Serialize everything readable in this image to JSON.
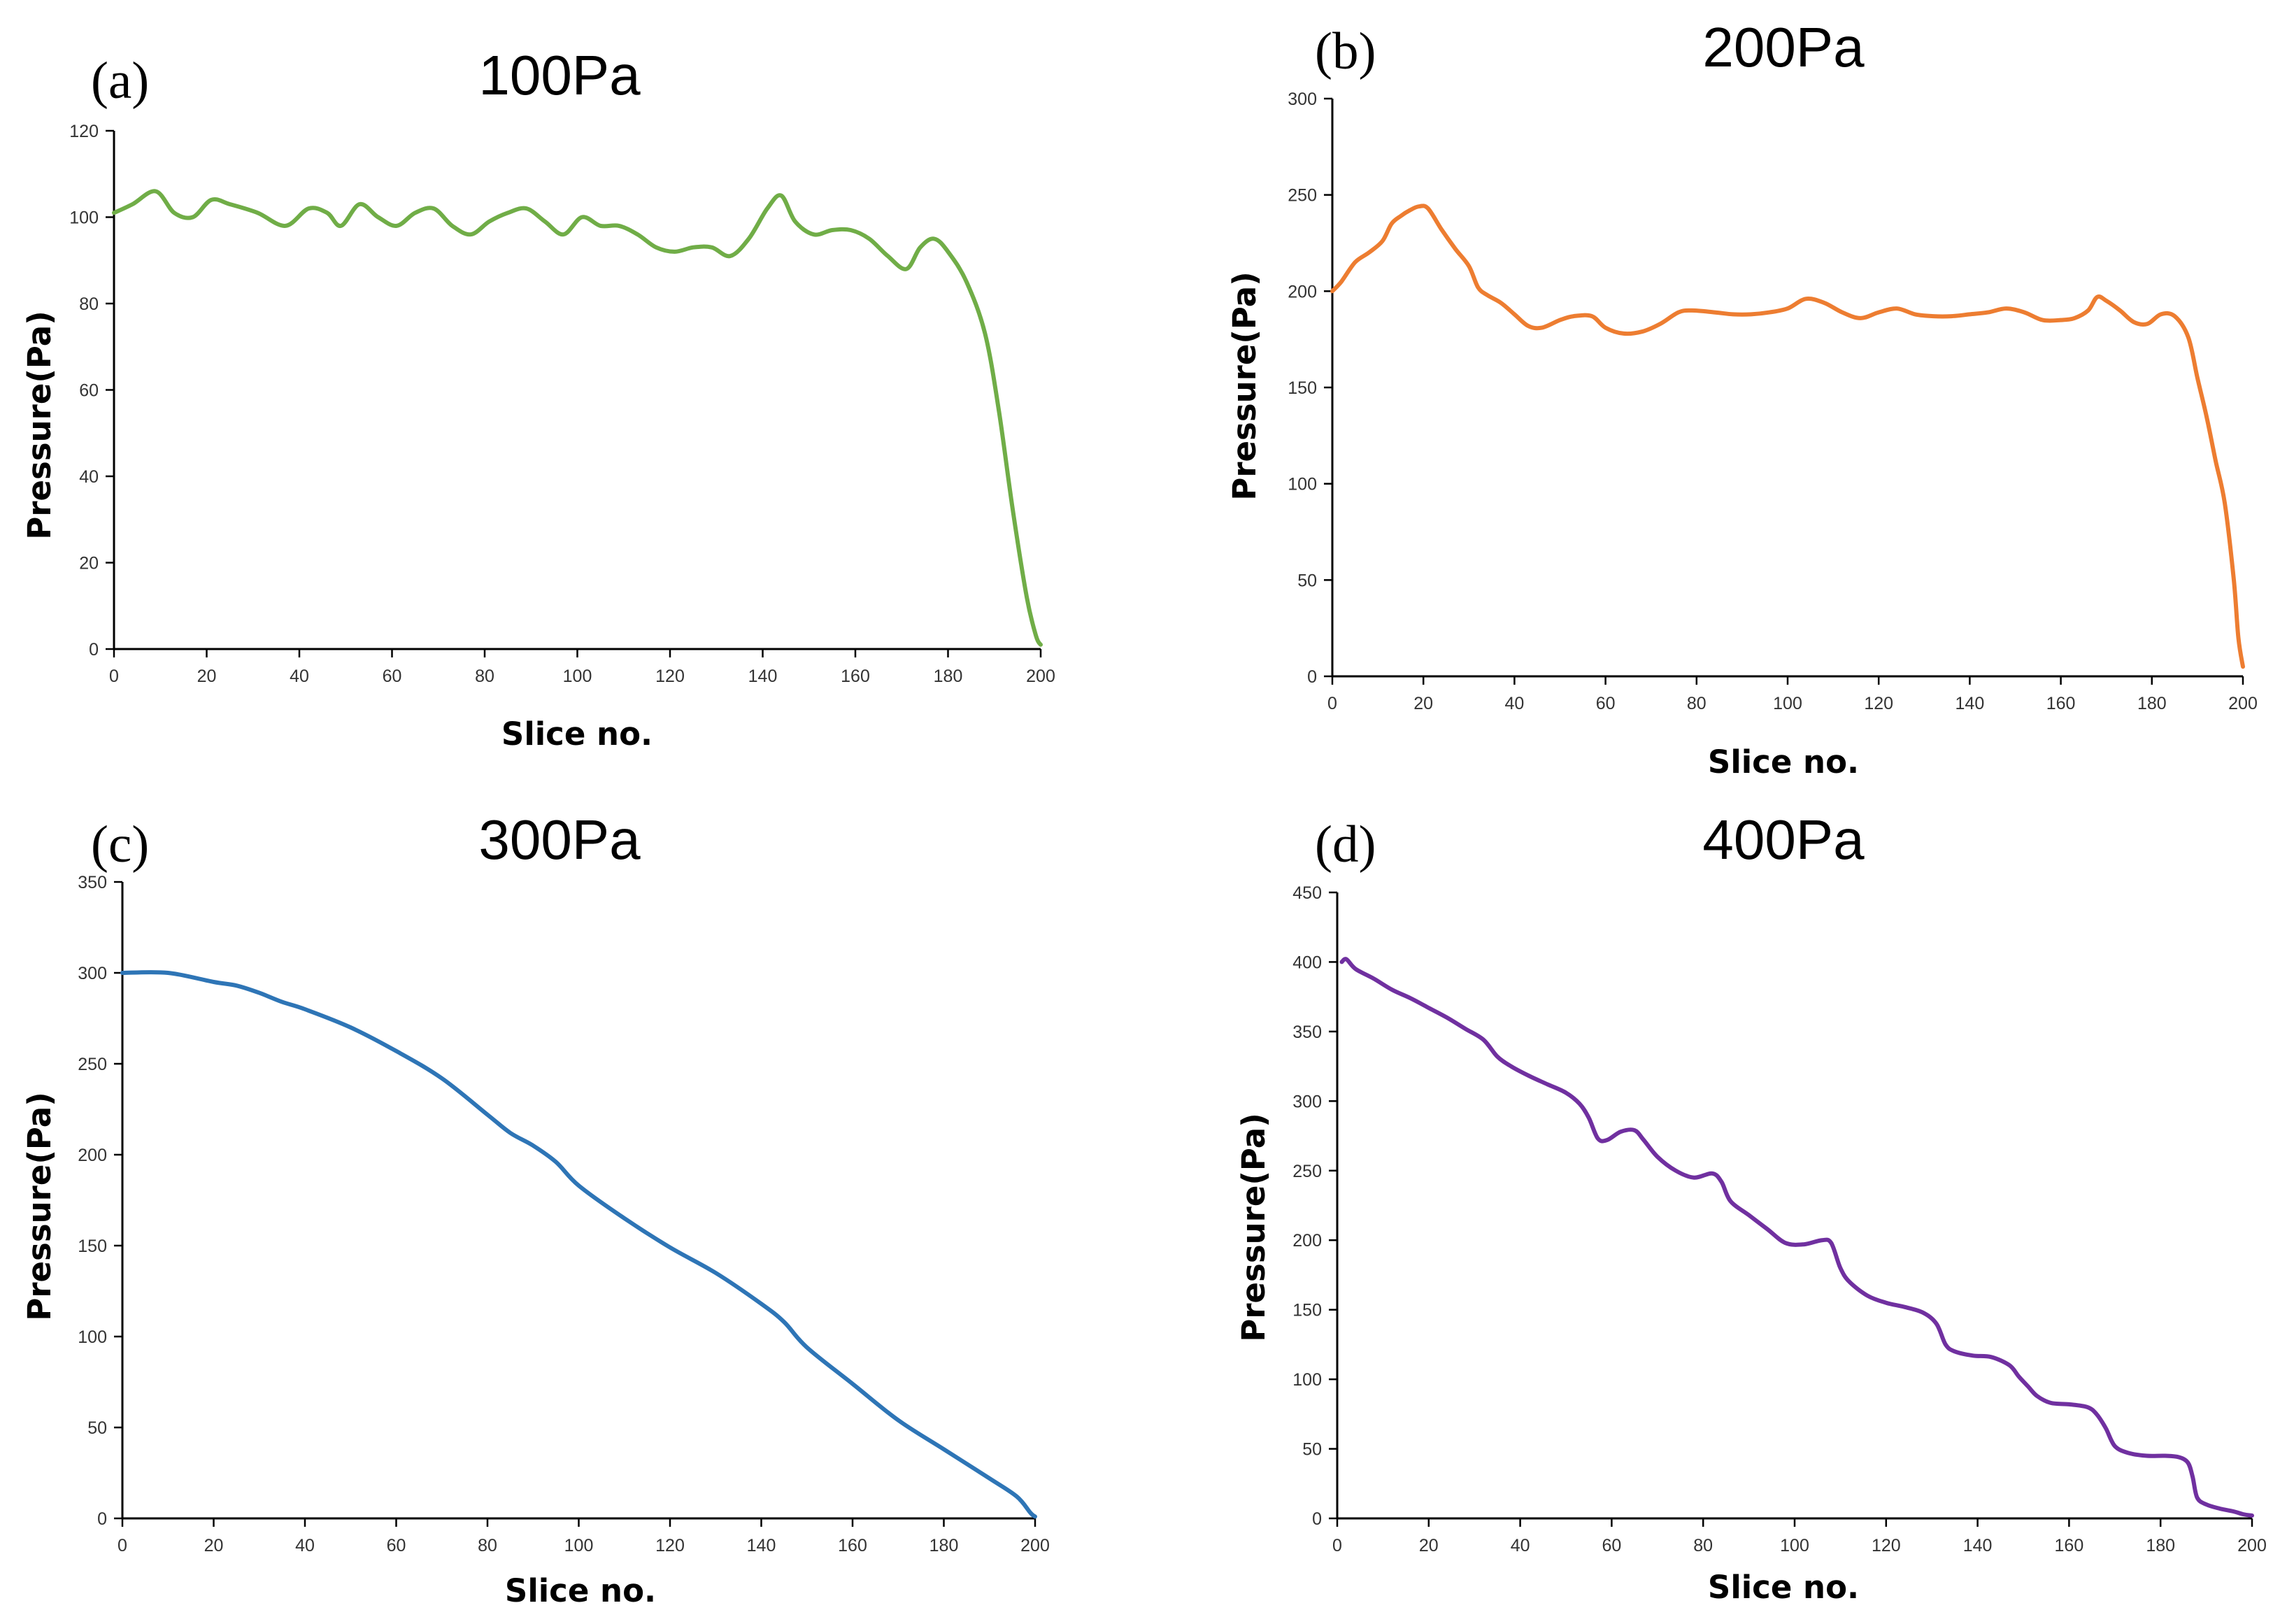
{
  "chart_data": [
    {
      "type": "line",
      "panel_label": "(a)",
      "title": "100Pa",
      "xlabel": "Slice no.",
      "ylabel": "Pressure(Pa)",
      "xlim": [
        0,
        200
      ],
      "ylim": [
        0,
        120
      ],
      "xticks": [
        0,
        20,
        40,
        60,
        80,
        100,
        120,
        140,
        160,
        180,
        200
      ],
      "yticks": [
        0,
        20,
        40,
        60,
        80,
        100,
        120
      ],
      "grid": false,
      "color": "#70AD47",
      "series": [
        {
          "name": "100Pa",
          "x": [
            0,
            4,
            9,
            13,
            17,
            21,
            25,
            31,
            37,
            42,
            46,
            49,
            53,
            57,
            61,
            65,
            69,
            73,
            77,
            81,
            85,
            89,
            93,
            97,
            101,
            105,
            109,
            113,
            117,
            121,
            125,
            129,
            133,
            137,
            141,
            144,
            147,
            151,
            155,
            159,
            163,
            167,
            171,
            174,
            177,
            180,
            184,
            188,
            191,
            194,
            197,
            199,
            200
          ],
          "values": [
            101,
            103,
            106,
            101,
            100,
            104,
            103,
            101,
            98,
            102,
            101,
            98,
            103,
            100,
            98,
            101,
            102,
            98,
            96,
            99,
            101,
            102,
            99,
            96,
            100,
            98,
            98,
            96,
            93,
            92,
            93,
            93,
            91,
            95,
            102,
            105,
            99,
            96,
            97,
            97,
            95,
            91,
            88,
            93,
            95,
            92,
            85,
            73,
            55,
            32,
            12,
            3,
            1
          ]
        }
      ]
    },
    {
      "type": "line",
      "panel_label": "(b)",
      "title": "200Pa",
      "xlabel": "Slice no.",
      "ylabel": "Pressure(Pa)",
      "xlim": [
        0,
        200
      ],
      "ylim": [
        0,
        300
      ],
      "xticks": [
        0,
        20,
        40,
        60,
        80,
        100,
        120,
        140,
        160,
        180,
        200
      ],
      "yticks": [
        0,
        50,
        100,
        150,
        200,
        250,
        300
      ],
      "grid": false,
      "color": "#ED7D31",
      "series": [
        {
          "name": "200Pa",
          "x": [
            0,
            2,
            5,
            8,
            11,
            13,
            15,
            17,
            19,
            21,
            24,
            27,
            30,
            32,
            34,
            37,
            40,
            43,
            46,
            50,
            53,
            57,
            60,
            64,
            68,
            72,
            76,
            79,
            84,
            88,
            92,
            96,
            100,
            104,
            108,
            112,
            116,
            120,
            124,
            128,
            132,
            136,
            140,
            144,
            148,
            152,
            156,
            160,
            163,
            166,
            168,
            170,
            173,
            176,
            179,
            182,
            185,
            188,
            190,
            192,
            194,
            196,
            198,
            199,
            200
          ],
          "values": [
            200,
            205,
            215,
            220,
            226,
            235,
            239,
            242,
            244,
            243,
            232,
            222,
            213,
            202,
            198,
            194,
            188,
            182,
            181,
            185,
            187,
            187,
            181,
            178,
            179,
            183,
            189,
            190,
            189,
            188,
            188,
            189,
            191,
            196,
            194,
            189,
            186,
            189,
            191,
            188,
            187,
            187,
            188,
            189,
            191,
            189,
            185,
            185,
            186,
            190,
            197,
            195,
            190,
            184,
            183,
            188,
            187,
            176,
            155,
            135,
            112,
            90,
            50,
            20,
            5
          ]
        }
      ]
    },
    {
      "type": "line",
      "panel_label": "(c)",
      "title": "300Pa",
      "xlabel": "Slice no.",
      "ylabel": "Pressure(Pa)",
      "xlim": [
        0,
        200
      ],
      "ylim": [
        0,
        350
      ],
      "xticks": [
        0,
        20,
        40,
        60,
        80,
        100,
        120,
        140,
        160,
        180,
        200
      ],
      "yticks": [
        0,
        50,
        100,
        150,
        200,
        250,
        300,
        350
      ],
      "grid": false,
      "color": "#2E75B6",
      "series": [
        {
          "name": "300Pa",
          "x": [
            0,
            10,
            20,
            25,
            30,
            35,
            40,
            50,
            60,
            70,
            80,
            85,
            90,
            95,
            100,
            110,
            120,
            130,
            140,
            145,
            150,
            160,
            170,
            180,
            190,
            196,
            199,
            200
          ],
          "values": [
            300,
            300,
            295,
            293,
            289,
            284,
            280,
            270,
            257,
            242,
            222,
            212,
            205,
            196,
            183,
            165,
            149,
            135,
            118,
            108,
            94,
            74,
            54,
            38,
            22,
            12,
            3,
            1
          ]
        }
      ]
    },
    {
      "type": "line",
      "panel_label": "(d)",
      "title": "400Pa",
      "xlabel": "Slice no.",
      "ylabel": "Pressure(Pa)",
      "xlim": [
        0,
        200
      ],
      "ylim": [
        0,
        450
      ],
      "xticks": [
        0,
        20,
        40,
        60,
        80,
        100,
        120,
        140,
        160,
        180,
        200
      ],
      "yticks": [
        0,
        50,
        100,
        150,
        200,
        250,
        300,
        350,
        400,
        450
      ],
      "grid": false,
      "color": "#7030A0",
      "series": [
        {
          "name": "400Pa",
          "x": [
            1,
            2,
            4,
            8,
            12,
            16,
            20,
            24,
            28,
            32,
            35,
            38,
            42,
            46,
            50,
            53,
            55,
            57,
            59,
            62,
            65,
            67,
            70,
            74,
            78,
            82,
            84,
            86,
            90,
            94,
            98,
            102,
            106,
            108,
            110,
            112,
            116,
            120,
            124,
            128,
            131,
            133,
            135,
            139,
            143,
            147,
            149,
            151,
            153,
            156,
            160,
            164,
            166,
            168,
            170,
            173,
            177,
            181,
            184,
            186,
            187,
            188,
            190,
            193,
            196,
            198,
            200
          ],
          "values": [
            400,
            402,
            395,
            388,
            380,
            374,
            367,
            360,
            352,
            344,
            332,
            325,
            318,
            312,
            306,
            298,
            288,
            273,
            272,
            278,
            279,
            272,
            260,
            250,
            245,
            248,
            242,
            228,
            218,
            208,
            198,
            197,
            200,
            198,
            180,
            170,
            160,
            155,
            152,
            148,
            140,
            125,
            120,
            117,
            116,
            110,
            102,
            95,
            88,
            83,
            82,
            80,
            75,
            65,
            52,
            47,
            45,
            45,
            44,
            40,
            30,
            15,
            10,
            7,
            5,
            3,
            2
          ]
        }
      ]
    }
  ]
}
